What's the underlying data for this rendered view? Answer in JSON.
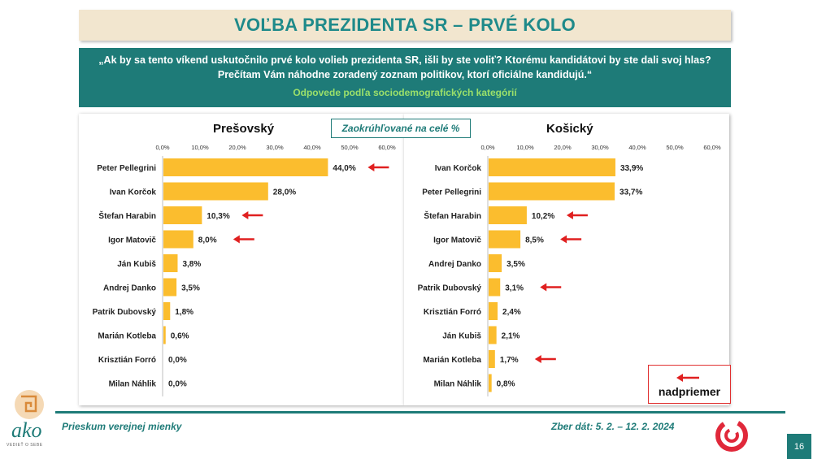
{
  "header": {
    "title": "VOĽBA PREZIDENTA SR – PRVÉ KOLO",
    "question": "„Ak by sa tento víkend uskutočnilo prvé kolo volieb prezidenta SR, išli by ste voliť? Ktorému kandidátovi by ste dali svoj hlas? Prečítam Vám náhodne zoradený zoznam politikov, ktorí oficiálne kandidujú.“",
    "subtitle": "Odpovede podľa sociodemografických kategórií"
  },
  "note": "Zaokrúhľované na celé %",
  "legend": {
    "label": "nadpriemer",
    "arrow_color": "#e02020"
  },
  "footer": {
    "left": "Prieskum verejnej mienky",
    "right": "Zber dát: 5. 2. – 12. 2. 2024",
    "page": "16",
    "logo_text": "ako",
    "logo_sub": "VEDIEŤ O SEBE"
  },
  "colors": {
    "bar": "#fbbd2e",
    "teal": "#1e7b78",
    "arrow": "#e02020"
  },
  "chart_data": [
    {
      "type": "bar",
      "orientation": "horizontal",
      "title": "Prešovský",
      "xlim": [
        0,
        60
      ],
      "ticks": [
        "0,0%",
        "10,0%",
        "20,0%",
        "30,0%",
        "40,0%",
        "50,0%",
        "60,0%"
      ],
      "categories": [
        "Peter Pellegrini",
        "Ivan Korčok",
        "Štefan Harabin",
        "Igor Matovič",
        "Ján Kubiš",
        "Andrej Danko",
        "Patrik Dubovský",
        "Marián Kotleba",
        "Krisztián Forró",
        "Milan Náhlik"
      ],
      "values": [
        44.0,
        28.0,
        10.3,
        8.0,
        3.8,
        3.5,
        1.8,
        0.6,
        0.0,
        0.0
      ],
      "labels": [
        "44,0%",
        "28,0%",
        "10,3%",
        "8,0%",
        "3,8%",
        "3,5%",
        "1,8%",
        "0,6%",
        "0,0%",
        "0,0%"
      ],
      "above_average": [
        true,
        false,
        true,
        true,
        false,
        false,
        false,
        false,
        false,
        false
      ]
    },
    {
      "type": "bar",
      "orientation": "horizontal",
      "title": "Košický",
      "xlim": [
        0,
        60
      ],
      "ticks": [
        "0,0%",
        "10,0%",
        "20,0%",
        "30,0%",
        "40,0%",
        "50,0%",
        "60,0%"
      ],
      "categories": [
        "Ivan Korčok",
        "Peter Pellegrini",
        "Štefan Harabin",
        "Igor Matovič",
        "Andrej Danko",
        "Patrik Dubovský",
        "Krisztián Forró",
        "Ján Kubiš",
        "Marián Kotleba",
        "Milan Náhlik"
      ],
      "values": [
        33.9,
        33.7,
        10.2,
        8.5,
        3.5,
        3.1,
        2.4,
        2.1,
        1.7,
        0.8
      ],
      "labels": [
        "33,9%",
        "33,7%",
        "10,2%",
        "8,5%",
        "3,5%",
        "3,1%",
        "2,4%",
        "2,1%",
        "1,7%",
        "0,8%"
      ],
      "above_average": [
        false,
        false,
        true,
        true,
        false,
        true,
        false,
        false,
        true,
        false
      ]
    }
  ]
}
